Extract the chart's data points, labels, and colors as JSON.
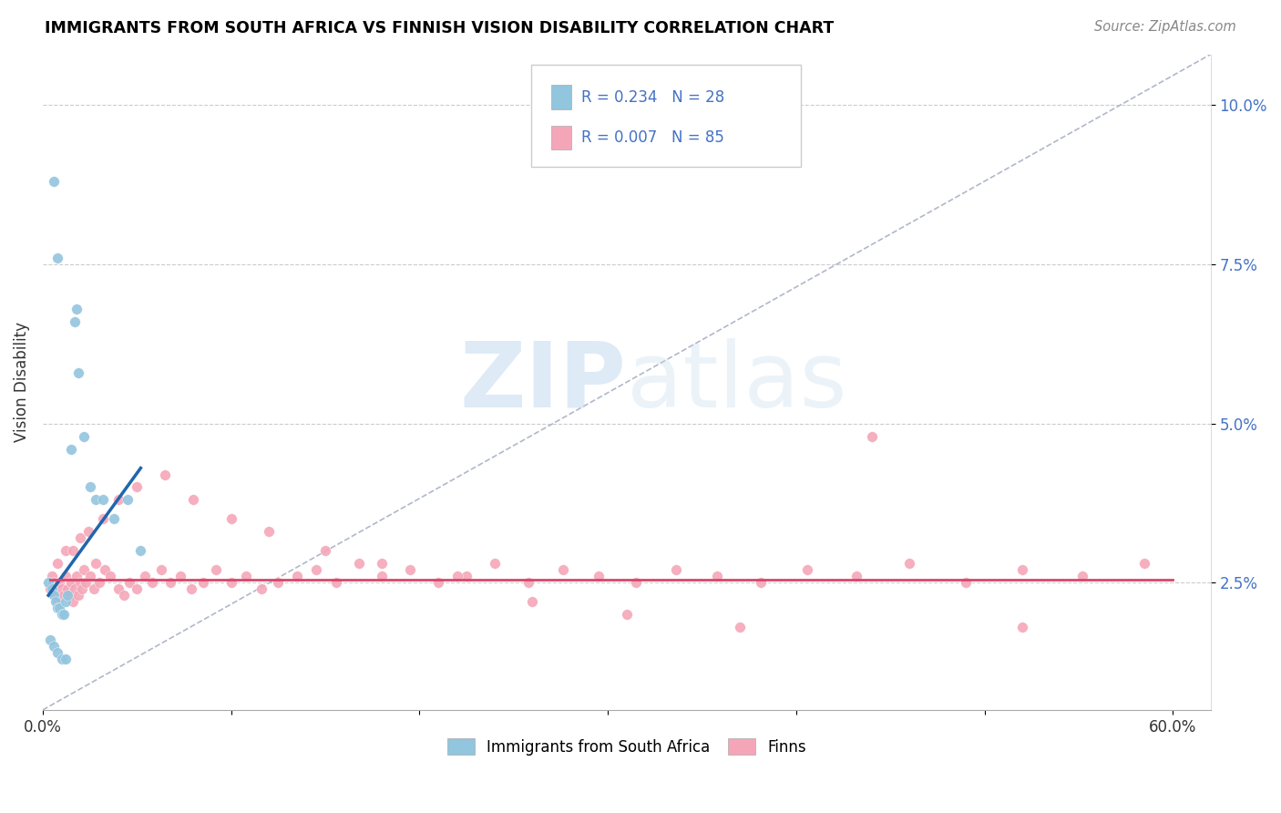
{
  "title": "IMMIGRANTS FROM SOUTH AFRICA VS FINNISH VISION DISABILITY CORRELATION CHART",
  "source": "Source: ZipAtlas.com",
  "ylabel": "Vision Disability",
  "xlim": [
    0.0,
    0.62
  ],
  "ylim": [
    0.005,
    0.108
  ],
  "yticks": [
    0.025,
    0.05,
    0.075,
    0.1
  ],
  "ytick_labels": [
    "2.5%",
    "5.0%",
    "7.5%",
    "10.0%"
  ],
  "xticks": [
    0.0,
    0.1,
    0.2,
    0.3,
    0.4,
    0.5,
    0.6
  ],
  "xtick_labels": [
    "0.0%",
    "",
    "",
    "",
    "",
    "",
    "60.0%"
  ],
  "blue_color": "#92c5de",
  "pink_color": "#f4a6b8",
  "blue_line_color": "#2166ac",
  "pink_line_color": "#d6476b",
  "dashed_line_color": "#b0b8c8",
  "legend_R1": "R = 0.234",
  "legend_N1": "N = 28",
  "legend_R2": "R = 0.007",
  "legend_N2": "N = 85",
  "watermark_zip": "ZIP",
  "watermark_atlas": "atlas",
  "blue_scatter_x": [
    0.003,
    0.005,
    0.006,
    0.007,
    0.008,
    0.009,
    0.01,
    0.011,
    0.012,
    0.013,
    0.015,
    0.017,
    0.019,
    0.022,
    0.025,
    0.028,
    0.032,
    0.038,
    0.045,
    0.052,
    0.004,
    0.006,
    0.008,
    0.01,
    0.012,
    0.006,
    0.008,
    0.018
  ],
  "blue_scatter_y": [
    0.025,
    0.024,
    0.023,
    0.022,
    0.021,
    0.021,
    0.02,
    0.02,
    0.022,
    0.023,
    0.046,
    0.066,
    0.058,
    0.048,
    0.04,
    0.038,
    0.038,
    0.035,
    0.038,
    0.03,
    0.016,
    0.015,
    0.014,
    0.013,
    0.013,
    0.088,
    0.076,
    0.068
  ],
  "pink_scatter_x": [
    0.004,
    0.005,
    0.006,
    0.007,
    0.008,
    0.009,
    0.01,
    0.011,
    0.012,
    0.013,
    0.014,
    0.015,
    0.016,
    0.017,
    0.018,
    0.019,
    0.02,
    0.021,
    0.022,
    0.023,
    0.025,
    0.027,
    0.03,
    0.033,
    0.036,
    0.04,
    0.043,
    0.046,
    0.05,
    0.054,
    0.058,
    0.063,
    0.068,
    0.073,
    0.079,
    0.085,
    0.092,
    0.1,
    0.108,
    0.116,
    0.125,
    0.135,
    0.145,
    0.156,
    0.168,
    0.18,
    0.195,
    0.21,
    0.225,
    0.24,
    0.258,
    0.276,
    0.295,
    0.315,
    0.336,
    0.358,
    0.381,
    0.406,
    0.432,
    0.46,
    0.49,
    0.52,
    0.552,
    0.585,
    0.008,
    0.012,
    0.016,
    0.02,
    0.024,
    0.028,
    0.032,
    0.04,
    0.05,
    0.065,
    0.08,
    0.1,
    0.12,
    0.15,
    0.18,
    0.22,
    0.26,
    0.31,
    0.37,
    0.44,
    0.52
  ],
  "pink_scatter_y": [
    0.024,
    0.026,
    0.025,
    0.023,
    0.022,
    0.025,
    0.024,
    0.023,
    0.026,
    0.024,
    0.023,
    0.025,
    0.022,
    0.024,
    0.026,
    0.023,
    0.025,
    0.024,
    0.027,
    0.025,
    0.026,
    0.024,
    0.025,
    0.027,
    0.026,
    0.024,
    0.023,
    0.025,
    0.024,
    0.026,
    0.025,
    0.027,
    0.025,
    0.026,
    0.024,
    0.025,
    0.027,
    0.025,
    0.026,
    0.024,
    0.025,
    0.026,
    0.027,
    0.025,
    0.028,
    0.026,
    0.027,
    0.025,
    0.026,
    0.028,
    0.025,
    0.027,
    0.026,
    0.025,
    0.027,
    0.026,
    0.025,
    0.027,
    0.026,
    0.028,
    0.025,
    0.027,
    0.026,
    0.028,
    0.028,
    0.03,
    0.03,
    0.032,
    0.033,
    0.028,
    0.035,
    0.038,
    0.04,
    0.042,
    0.038,
    0.035,
    0.033,
    0.03,
    0.028,
    0.026,
    0.022,
    0.02,
    0.018,
    0.048,
    0.018
  ],
  "blue_line_x": [
    0.003,
    0.052
  ],
  "blue_line_y": [
    0.023,
    0.043
  ],
  "pink_line_x": [
    0.004,
    0.6
  ],
  "pink_line_y": [
    0.0255,
    0.0255
  ],
  "diag_line_x": [
    0.0,
    0.62
  ],
  "diag_line_y": [
    0.005,
    0.108
  ]
}
